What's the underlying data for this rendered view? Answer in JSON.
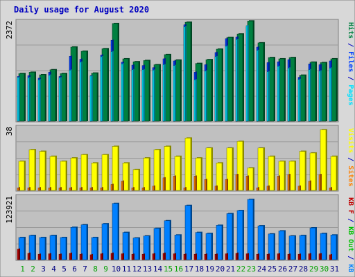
{
  "colors": {
    "background": "#d8d8d8",
    "panel": "#c0c0c0",
    "border": "#808080",
    "title": "#0000c0",
    "hits": "#008040",
    "files": "#0040ff",
    "pages": "#00e0ff",
    "visits": "#ffff00",
    "sites": "#ff8000",
    "kb_in": "#0080ff",
    "kb_out": "#00c000",
    "kb_f": "#c00000",
    "tick_weekend": "#00a000",
    "tick_weekday": "#000080"
  },
  "chart_data": {
    "type": "bar",
    "title": "Daily usage for August 2020",
    "categories": [
      "1",
      "2",
      "3",
      "4",
      "5",
      "6",
      "7",
      "8",
      "9",
      "10",
      "11",
      "12",
      "13",
      "14",
      "15",
      "16",
      "17",
      "18",
      "19",
      "20",
      "21",
      "22",
      "23",
      "24",
      "25",
      "26",
      "27",
      "28",
      "29",
      "30",
      "31"
    ],
    "weekend_days": [
      "1",
      "2",
      "8",
      "9",
      "15",
      "16",
      "22",
      "23",
      "29",
      "30"
    ],
    "panels": [
      {
        "name": "traffic",
        "scale_label": "2372",
        "ymax": 2372,
        "legend": [
          {
            "label": "Hits",
            "color_key": "hits"
          },
          {
            "label": " / ",
            "color_key": "title"
          },
          {
            "label": "Files",
            "color_key": "files"
          },
          {
            "label": " / ",
            "color_key": "title"
          },
          {
            "label": "Pages",
            "color_key": "pages"
          }
        ],
        "series": [
          {
            "name": "Hits",
            "color_key": "hits",
            "values": [
              1150,
              1180,
              1120,
              1240,
              1150,
              1780,
              1680,
              1160,
              1740,
              2340,
              1500,
              1430,
              1460,
              1360,
              1600,
              1470,
              2370,
              1390,
              1480,
              1730,
              2010,
              2090,
              2400,
              1880,
              1530,
              1500,
              1530,
              1110,
              1420,
              1410,
              1500
            ]
          },
          {
            "name": "Files",
            "color_key": "files",
            "values": [
              1080,
              1100,
              1040,
              1180,
              1080,
              1560,
              1490,
              1100,
              1590,
              1940,
              1420,
              1350,
              1340,
              1290,
              1500,
              1450,
              2310,
              1180,
              1360,
              1650,
              1980,
              2020,
              2260,
              1780,
              1410,
              1430,
              1480,
              1060,
              1380,
              1360,
              1450
            ]
          },
          {
            "name": "Pages",
            "color_key": "pages",
            "values": [
              1060,
              1050,
              1000,
              1110,
              1050,
              1230,
              1420,
              1090,
              1550,
              1670,
              1380,
              1240,
              1240,
              1230,
              1360,
              1340,
              2260,
              1000,
              1210,
              1550,
              1800,
              1960,
              2290,
              1700,
              1190,
              1320,
              1280,
              1010,
              1240,
              1210,
              1280
            ]
          }
        ]
      },
      {
        "name": "visits",
        "scale_label": "38",
        "ymax": 38,
        "legend": [
          {
            "label": "Visits",
            "color_key": "visits"
          },
          {
            "label": " / ",
            "color_key": "title"
          },
          {
            "label": "Sites",
            "color_key": "sites"
          }
        ],
        "series": [
          {
            "name": "Visits",
            "color_key": "visits",
            "values": [
              18,
              25,
              24,
              21,
              18,
              20,
              22,
              17,
              22,
              27,
              17,
              13,
              20,
              25,
              27,
              21,
              32,
              20,
              26,
              17,
              26,
              30,
              14,
              26,
              21,
              18,
              18,
              24,
              23,
              37,
              21
            ]
          },
          {
            "name": "Sites",
            "color_key": "sites",
            "values": [
              2,
              2,
              2,
              2,
              2,
              2,
              2,
              2,
              2,
              4,
              6,
              2,
              2,
              3,
              8,
              9,
              2,
              9,
              7,
              3,
              7,
              10,
              9,
              2,
              3,
              9,
              10,
              3,
              6,
              10,
              2
            ]
          }
        ]
      },
      {
        "name": "kbytes",
        "scale_label": "123921",
        "ymax": 123921,
        "legend": [
          {
            "label": "KB F",
            "color_key": "kb_f"
          },
          {
            "label": " / ",
            "color_key": "title"
          },
          {
            "label": "KB Out",
            "color_key": "kb_out"
          },
          {
            "label": " / ",
            "color_key": "title"
          },
          {
            "label": "KB In",
            "color_key": "kb_in"
          }
        ],
        "series": [
          {
            "name": "KB In",
            "color_key": "kb_in",
            "values": [
              45000,
              49000,
              45000,
              49000,
              45000,
              65000,
              70000,
              45000,
              72000,
              112000,
              55000,
              44000,
              48000,
              63000,
              78000,
              50000,
              108000,
              55000,
              53000,
              69000,
              92000,
              98000,
              120000,
              68000,
              52000,
              58000,
              48000,
              49000,
              64000,
              53000,
              50000
            ]
          },
          {
            "name": "KB F",
            "color_key": "kb_f",
            "values": [
              22000,
              14000,
              12000,
              13000,
              12000,
              14000,
              12000,
              11000,
              13000,
              14000,
              13000,
              12000,
              12000,
              13000,
              14000,
              13000,
              12000,
              12000,
              12000,
              12000,
              13000,
              14000,
              13000,
              12000,
              12000,
              13000,
              12000,
              12000,
              13000,
              13000,
              11000
            ]
          }
        ]
      }
    ]
  }
}
